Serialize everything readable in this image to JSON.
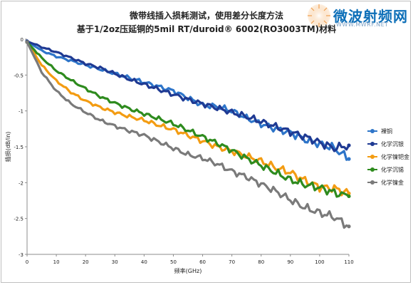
{
  "logo": {
    "text": "微波射频网",
    "url": "WWW.MWRF.NET"
  },
  "chart_data": {
    "type": "line",
    "title": "微带线插入损耗测试，使用差分长度方法",
    "subtitle": "基于1/2oz压延铜的5mil RT/duroid® 6002(RO3003TM)材料",
    "xlabel": "频率(GHz)",
    "ylabel": "插损(dB/in)",
    "xlim": [
      0,
      110
    ],
    "ylim": [
      -3,
      0
    ],
    "xticks": [
      0,
      10,
      20,
      30,
      40,
      50,
      60,
      70,
      80,
      90,
      100,
      110
    ],
    "yticks": [
      0,
      -0.5,
      -1,
      -1.5,
      -2,
      -2.5,
      -3
    ],
    "grid": "none",
    "legend_position": "right",
    "series": [
      {
        "name": "裸铜",
        "color": "#2e75c9",
        "x": [
          0,
          5,
          10,
          15,
          20,
          25,
          30,
          35,
          40,
          45,
          50,
          55,
          60,
          65,
          70,
          75,
          80,
          85,
          90,
          95,
          100,
          105,
          110
        ],
        "y": [
          -0.03,
          -0.16,
          -0.24,
          -0.3,
          -0.36,
          -0.42,
          -0.48,
          -0.54,
          -0.6,
          -0.66,
          -0.72,
          -0.82,
          -0.92,
          -0.94,
          -1.0,
          -1.1,
          -1.18,
          -1.25,
          -1.3,
          -1.4,
          -1.46,
          -1.52,
          -1.67
        ]
      },
      {
        "name": "化学沉银",
        "color": "#1f3a93",
        "x": [
          0,
          5,
          10,
          15,
          20,
          25,
          30,
          35,
          40,
          45,
          50,
          55,
          60,
          65,
          70,
          75,
          80,
          85,
          90,
          95,
          100,
          105,
          110
        ],
        "y": [
          -0.03,
          -0.11,
          -0.18,
          -0.26,
          -0.34,
          -0.4,
          -0.48,
          -0.56,
          -0.63,
          -0.7,
          -0.77,
          -0.84,
          -0.9,
          -0.96,
          -1.02,
          -1.08,
          -1.15,
          -1.22,
          -1.29,
          -1.36,
          -1.44,
          -1.52,
          -1.48
        ]
      },
      {
        "name": "化学镍钯金",
        "color": "#f39c12",
        "x": [
          0,
          5,
          10,
          15,
          20,
          25,
          30,
          35,
          40,
          45,
          50,
          55,
          60,
          65,
          70,
          75,
          80,
          85,
          90,
          95,
          100,
          105,
          110
        ],
        "y": [
          -0.04,
          -0.36,
          -0.58,
          -0.74,
          -0.86,
          -0.95,
          -1.02,
          -1.08,
          -1.13,
          -1.2,
          -1.26,
          -1.34,
          -1.42,
          -1.5,
          -1.56,
          -1.63,
          -1.7,
          -1.79,
          -1.86,
          -1.97,
          -2.06,
          -2.08,
          -2.15
        ]
      },
      {
        "name": "化学沉锡",
        "color": "#2e8b1e",
        "x": [
          0,
          5,
          10,
          15,
          20,
          25,
          30,
          35,
          40,
          45,
          50,
          55,
          60,
          65,
          70,
          75,
          80,
          85,
          90,
          95,
          100,
          105,
          110
        ],
        "y": [
          -0.04,
          -0.26,
          -0.44,
          -0.57,
          -0.69,
          -0.8,
          -0.89,
          -0.97,
          -1.04,
          -1.11,
          -1.18,
          -1.27,
          -1.36,
          -1.45,
          -1.55,
          -1.66,
          -1.76,
          -1.86,
          -1.96,
          -2.03,
          -2.07,
          -2.14,
          -2.19
        ]
      },
      {
        "name": "化学镍金",
        "color": "#7a7a7a",
        "x": [
          0,
          5,
          10,
          15,
          20,
          25,
          30,
          35,
          40,
          45,
          50,
          55,
          60,
          65,
          70,
          75,
          80,
          85,
          90,
          95,
          100,
          105,
          110
        ],
        "y": [
          -0.04,
          -0.46,
          -0.72,
          -0.9,
          -1.02,
          -1.13,
          -1.21,
          -1.28,
          -1.34,
          -1.43,
          -1.52,
          -1.61,
          -1.66,
          -1.74,
          -1.84,
          -1.92,
          -2.02,
          -2.12,
          -2.24,
          -2.35,
          -2.42,
          -2.48,
          -2.61
        ]
      }
    ]
  }
}
